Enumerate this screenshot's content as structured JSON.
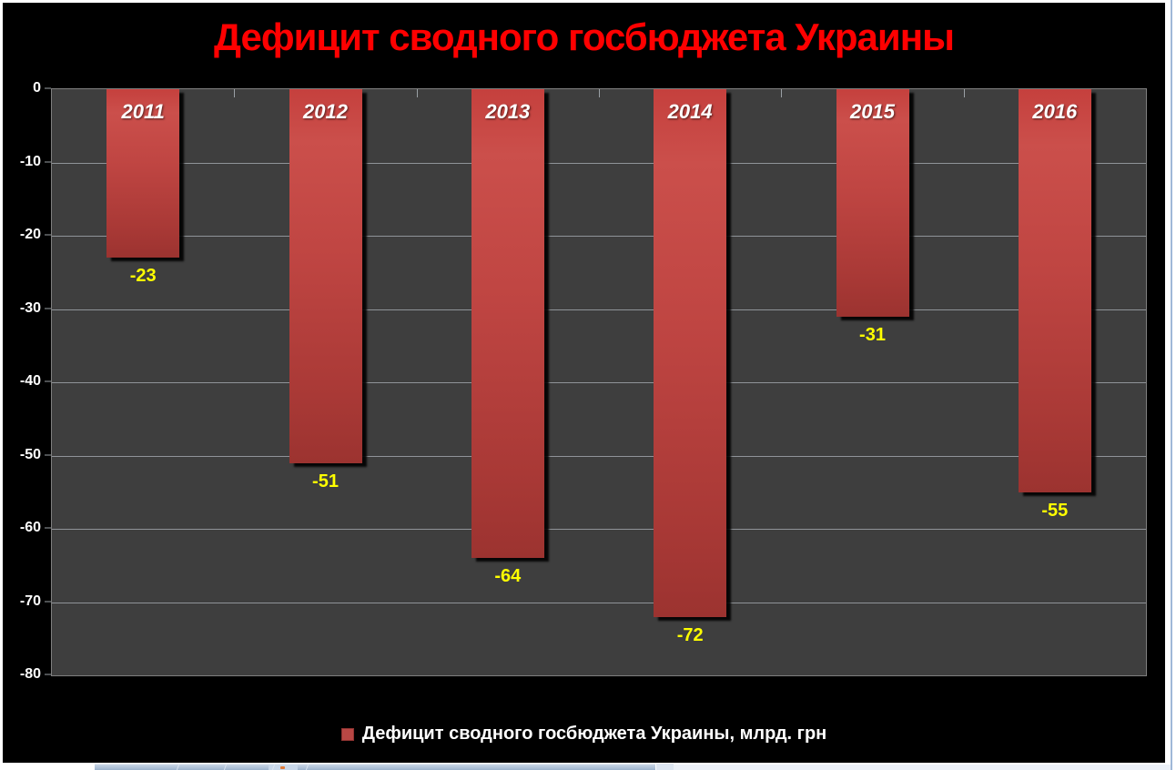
{
  "chart_data": {
    "type": "bar",
    "title": "Дефицит сводного госбюджета Украины",
    "legend": "Дефицит сводного госбюджета Украины, млрд. грн",
    "categories": [
      "2011",
      "2012",
      "2013",
      "2014",
      "2015",
      "2016"
    ],
    "values": [
      -23,
      -51,
      -64,
      -72,
      -31,
      -55
    ],
    "ylim": [
      -80,
      0
    ],
    "ytick_step": 10,
    "grid": true,
    "legend_position": "bottom",
    "colors": {
      "title": "#ff0000",
      "chart_background": "#000000",
      "plot_background": "#3e3e3e",
      "gridline": "#8f9398",
      "bar": "#b94a47",
      "category_label": "#ffffff",
      "data_label": "#ffff00",
      "axis_label": "#ffffff",
      "legend_text": "#ffffff"
    }
  }
}
